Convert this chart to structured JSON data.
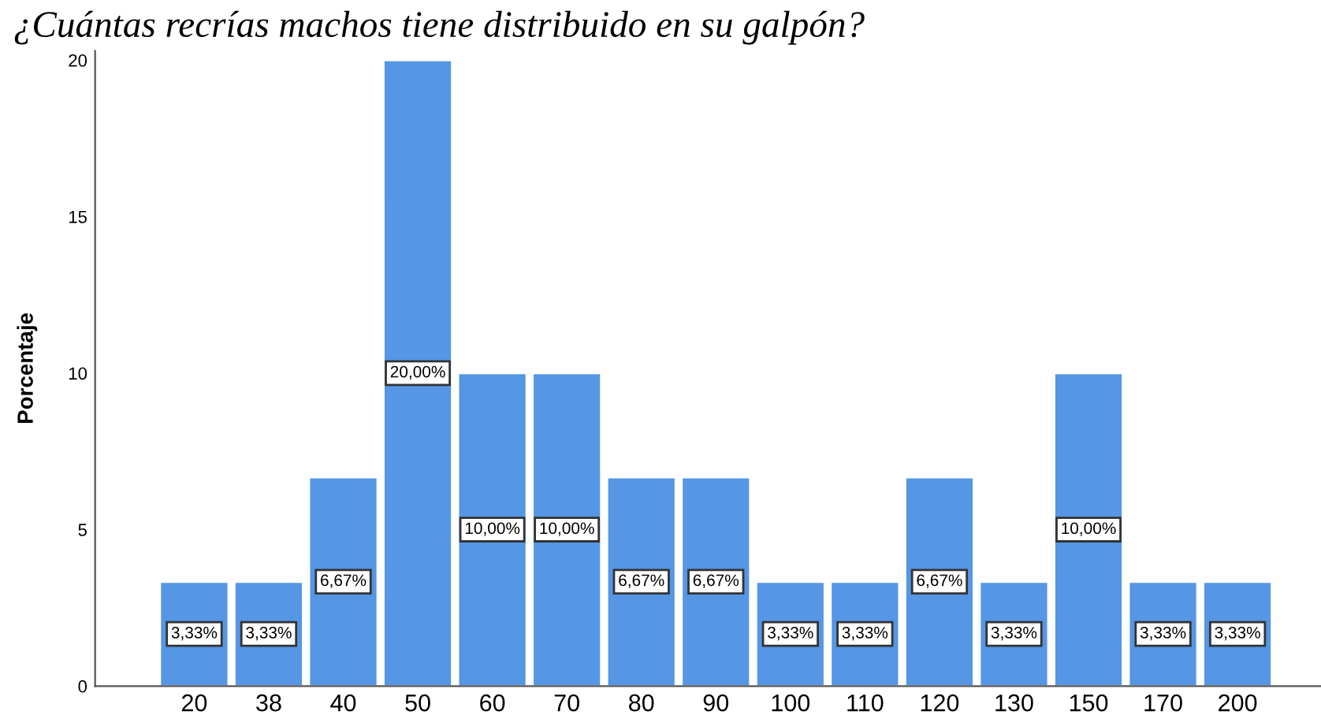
{
  "chart_data": {
    "type": "bar",
    "title": "¿Cuántas recrías machos tiene distribuido en su galpón?",
    "ylabel": "Porcentaje",
    "categories": [
      "20",
      "38",
      "40",
      "50",
      "60",
      "70",
      "80",
      "90",
      "100",
      "110",
      "120",
      "130",
      "150",
      "170",
      "200"
    ],
    "values": [
      3.33,
      3.33,
      6.67,
      20,
      10,
      10,
      6.67,
      6.67,
      3.33,
      3.33,
      6.67,
      3.33,
      10,
      3.33,
      3.33
    ],
    "value_labels": [
      "3,33%",
      "3,33%",
      "6,67%",
      "20,00%",
      "10,00%",
      "10,00%",
      "6,67%",
      "6,67%",
      "3,33%",
      "3,33%",
      "6,67%",
      "3,33%",
      "10,00%",
      "3,33%",
      "3,33%"
    ],
    "color": "#5596e5",
    "ylim": [
      0,
      20.3
    ],
    "yticks": [
      0,
      5,
      10,
      15,
      20
    ],
    "grid": false,
    "legend": false
  }
}
